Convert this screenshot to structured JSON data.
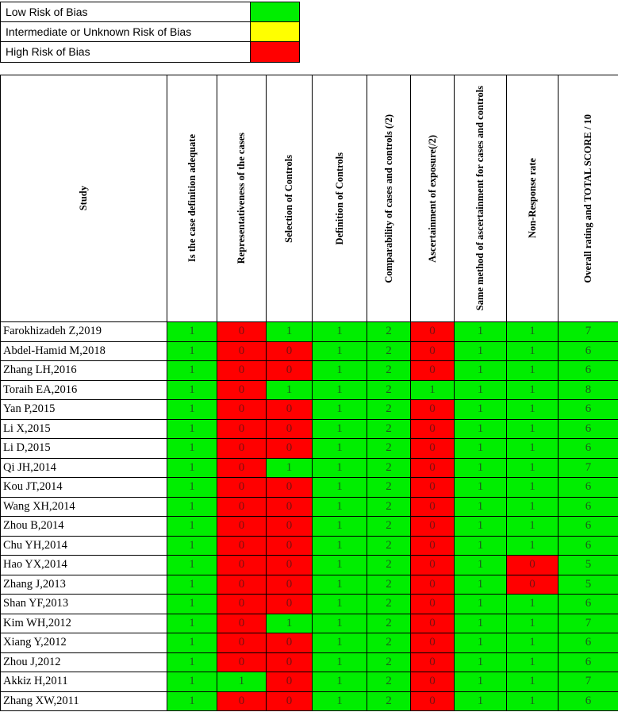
{
  "legend": [
    {
      "label": "Low Risk of Bias",
      "color": "#00ee00"
    },
    {
      "label": "Intermediate or Unknown Risk of Bias",
      "color": "#ffff00"
    },
    {
      "label": "High Risk of Bias",
      "color": "#ff0000"
    }
  ],
  "table": {
    "headers": [
      "Study",
      "Is the case definition adequate",
      "Representativeness of the cases",
      "Selection of Controls",
      "Definition of Controls",
      "Comparability of cases and controls (/2)",
      "Ascertainment of exposure(/2)",
      "Same method of ascertainment for cases and controls",
      "Non-Response rate",
      "Overall rating and TOTAL SCORE / 10"
    ],
    "rows": [
      {
        "study": "Farokhizadeh Z,2019",
        "scores": [
          "1",
          "0",
          "1",
          "1",
          "2",
          "0",
          "1",
          "1",
          "7"
        ]
      },
      {
        "study": "Abdel-Hamid M,2018",
        "scores": [
          "1",
          "0",
          "0",
          "1",
          "2",
          "0",
          "1",
          "1",
          "6"
        ]
      },
      {
        "study": "Zhang LH,2016",
        "scores": [
          "1",
          "0",
          "0",
          "1",
          "2",
          "0",
          "1",
          "1",
          "6"
        ]
      },
      {
        "study": "Toraih EA,2016",
        "scores": [
          "1",
          "0",
          "1",
          "1",
          "2",
          "1",
          "1",
          "1",
          "8"
        ]
      },
      {
        "study": "Yan P,2015",
        "scores": [
          "1",
          "0",
          "0",
          "1",
          "2",
          "0",
          "1",
          "1",
          "6"
        ]
      },
      {
        "study": "Li X,2015",
        "scores": [
          "1",
          "0",
          "0",
          "1",
          "2",
          "0",
          "1",
          "1",
          "6"
        ]
      },
      {
        "study": "Li D,2015",
        "scores": [
          "1",
          "0",
          "0",
          "1",
          "2",
          "0",
          "1",
          "1",
          "6"
        ]
      },
      {
        "study": "Qi JH,2014",
        "scores": [
          "1",
          "0",
          "1",
          "1",
          "2",
          "0",
          "1",
          "1",
          "7"
        ]
      },
      {
        "study": "Kou JT,2014",
        "scores": [
          "1",
          "0",
          "0",
          "1",
          "2",
          "0",
          "1",
          "1",
          "6"
        ]
      },
      {
        "study": "Wang XH,2014",
        "scores": [
          "1",
          "0",
          "0",
          "1",
          "2",
          "0",
          "1",
          "1",
          "6"
        ]
      },
      {
        "study": "Zhou B,2014",
        "scores": [
          "1",
          "0",
          "0",
          "1",
          "2",
          "0",
          "1",
          "1",
          "6"
        ]
      },
      {
        "study": "Chu YH,2014",
        "scores": [
          "1",
          "0",
          "0",
          "1",
          "2",
          "0",
          "1",
          "1",
          "6"
        ]
      },
      {
        "study": "Hao YX,2014",
        "scores": [
          "1",
          "0",
          "0",
          "1",
          "2",
          "0",
          "1",
          "0",
          "5"
        ]
      },
      {
        "study": "Zhang J,2013",
        "scores": [
          "1",
          "0",
          "0",
          "1",
          "2",
          "0",
          "1",
          "0",
          "5"
        ]
      },
      {
        "study": "Shan YF,2013",
        "scores": [
          "1",
          "0",
          "0",
          "1",
          "2",
          "0",
          "1",
          "1",
          "6"
        ]
      },
      {
        "study": "Kim WH,2012",
        "scores": [
          "1",
          "0",
          "1",
          "1",
          "2",
          "0",
          "1",
          "1",
          "7"
        ]
      },
      {
        "study": "Xiang Y,2012",
        "scores": [
          "1",
          "0",
          "0",
          "1",
          "2",
          "0",
          "1",
          "1",
          "6"
        ]
      },
      {
        "study": "Zhou J,2012",
        "scores": [
          "1",
          "0",
          "0",
          "1",
          "2",
          "0",
          "1",
          "1",
          "6"
        ]
      },
      {
        "study": "Akkiz H,2011",
        "scores": [
          "1",
          "1",
          "0",
          "1",
          "2",
          "0",
          "1",
          "1",
          "7"
        ]
      },
      {
        "study": "Zhang XW,2011",
        "scores": [
          "1",
          "0",
          "0",
          "1",
          "2",
          "0",
          "1",
          "1",
          "6"
        ]
      }
    ]
  }
}
